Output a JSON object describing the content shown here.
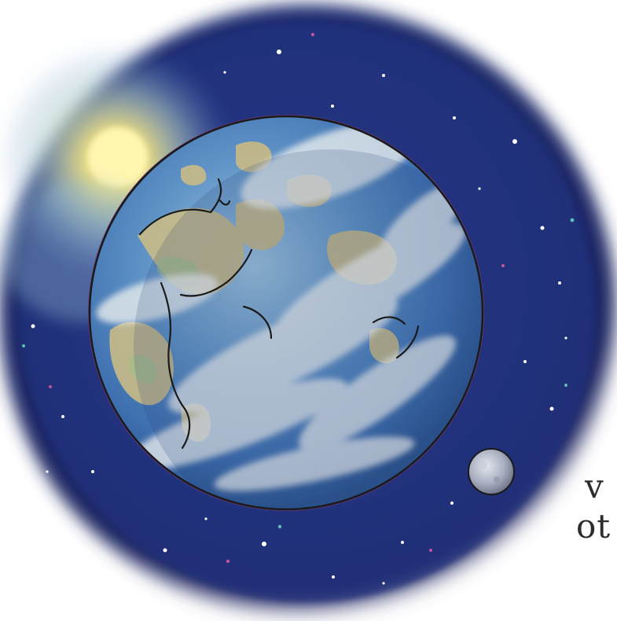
{
  "scene": {
    "subject": "globe-icon",
    "moon": "moon-icon",
    "sun": "sun-icon",
    "colors": {
      "space_dark": "#1c2a6b",
      "space_mid": "#27408f",
      "ocean": "#3f73b2",
      "ocean_light": "#79a9d1",
      "land": "#c9ba86",
      "cloud": "#eef0ef",
      "sun_glow": "#f7e67c",
      "outline": "#1a1a1a",
      "page_bg": "#ffffff"
    }
  },
  "cut_text": {
    "line1": "v",
    "line2": "ot"
  }
}
